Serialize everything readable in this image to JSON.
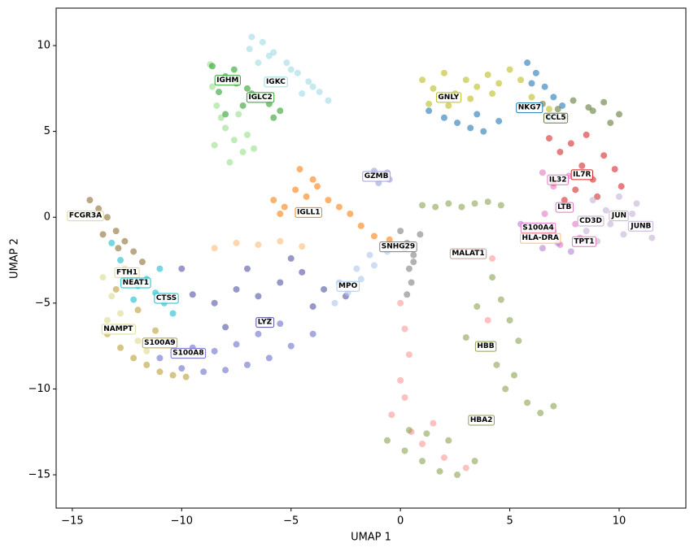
{
  "chart_data": {
    "type": "scatter",
    "xlabel": "UMAP 1",
    "ylabel": "UMAP 2",
    "xlim": [
      -15.74,
      13.05
    ],
    "ylim": [
      -16.94,
      12.18
    ],
    "xticks": [
      {
        "value": -15,
        "label": "−15"
      },
      {
        "value": -10,
        "label": "−10"
      },
      {
        "value": -5,
        "label": "−5"
      },
      0,
      5,
      10
    ],
    "yticks": [
      {
        "value": -15,
        "label": "−15"
      },
      {
        "value": -10,
        "label": "−10"
      },
      {
        "value": -5,
        "label": "−5"
      },
      0,
      5,
      10
    ],
    "grid": false,
    "series": [
      {
        "color": "#9edae5",
        "x": [
          -6.8,
          -6.3,
          -5.8,
          -5.2,
          -4.7,
          -4.2,
          -3.7,
          -3.3,
          -6.5,
          -5.5,
          -4.5,
          -6.9,
          -6.0,
          -5.0,
          -4.0
        ],
        "y": [
          10.5,
          10.2,
          9.6,
          9.0,
          8.4,
          7.9,
          7.3,
          6.8,
          9.0,
          8.0,
          7.2,
          9.8,
          9.4,
          8.6,
          7.6
        ]
      },
      {
        "color": "#98df8a",
        "x": [
          -8.7,
          -8.4,
          -8.0,
          -7.6,
          -7.2,
          -8.5,
          -7.8,
          -8.2,
          -7.4,
          -7.0,
          -8.6,
          -6.7
        ],
        "y": [
          8.9,
          6.5,
          5.2,
          4.5,
          3.8,
          4.2,
          3.2,
          5.8,
          6.0,
          4.8,
          7.6,
          4.0
        ]
      },
      {
        "color": "#2ca02c",
        "x": [
          -8.6,
          -8.0,
          -7.5,
          -7.0,
          -6.5,
          -6.0,
          -5.5,
          -8.3,
          -7.6,
          -6.8,
          -7.2,
          -8.0,
          -5.8
        ],
        "y": [
          8.8,
          8.2,
          7.8,
          7.5,
          7.0,
          6.6,
          6.2,
          7.3,
          8.6,
          7.2,
          6.5,
          6.0,
          5.8
        ]
      },
      {
        "color": "#bcbd22",
        "x": [
          1.0,
          1.5,
          2.0,
          2.5,
          3.0,
          3.5,
          4.0,
          4.5,
          5.0,
          5.5,
          2.2,
          3.2,
          4.2,
          1.3,
          6.0,
          6.8
        ],
        "y": [
          8.0,
          7.5,
          8.4,
          7.2,
          8.0,
          7.6,
          8.3,
          7.8,
          8.6,
          8.0,
          6.5,
          6.9,
          7.2,
          6.6,
          7.0,
          6.3
        ]
      },
      {
        "color": "#1f77b4",
        "x": [
          1.3,
          2.0,
          2.6,
          3.2,
          3.8,
          5.8,
          6.2,
          6.6,
          7.0,
          7.4,
          6.0,
          6.8,
          3.5,
          4.5
        ],
        "y": [
          6.2,
          5.8,
          5.5,
          5.2,
          5.0,
          9.0,
          8.4,
          7.6,
          7.0,
          6.5,
          7.8,
          5.8,
          6.0,
          5.6
        ]
      },
      {
        "color": "#637939",
        "x": [
          6.5,
          7.2,
          7.9,
          8.6,
          9.3,
          10.0,
          7.5,
          8.8,
          9.6
        ],
        "y": [
          6.6,
          6.3,
          6.8,
          6.4,
          6.7,
          6.0,
          5.8,
          6.2,
          5.5
        ]
      },
      {
        "color": "#d62728",
        "x": [
          6.8,
          7.3,
          7.8,
          8.3,
          8.8,
          9.3,
          9.8,
          7.0,
          8.0,
          9.0,
          10.1,
          7.5,
          8.5
        ],
        "y": [
          4.6,
          3.8,
          4.3,
          3.0,
          2.2,
          3.6,
          2.8,
          2.0,
          1.6,
          1.2,
          1.8,
          1.0,
          4.8
        ]
      },
      {
        "color": "#e377c2",
        "x": [
          6.5,
          7.0,
          7.5,
          8.0,
          6.8,
          7.3,
          8.2,
          6.6,
          7.7
        ],
        "y": [
          2.6,
          1.8,
          0.6,
          -0.4,
          -1.0,
          -1.6,
          -1.2,
          0.2,
          2.4
        ]
      },
      {
        "color": "#c5b0d5",
        "x": [
          8.8,
          9.4,
          10.0,
          10.6,
          11.2,
          11.5,
          9.0,
          10.2,
          10.8,
          9.6,
          8.5
        ],
        "y": [
          1.0,
          0.4,
          1.2,
          0.2,
          -0.6,
          -1.2,
          -1.4,
          -1.0,
          0.8,
          -0.4,
          -0.8
        ]
      },
      {
        "color": "#b682d4",
        "x": [
          5.5,
          6.0,
          6.5,
          7.2,
          7.8,
          8.3,
          6.2,
          7.0
        ],
        "y": [
          -0.4,
          -1.2,
          -1.8,
          -1.5,
          -2.0,
          -1.4,
          -0.6,
          -0.8
        ]
      },
      {
        "color": "#9c9ede",
        "x": [
          -1.2,
          -0.8,
          -0.5,
          -1.0,
          -0.6
        ],
        "y": [
          2.7,
          2.4,
          2.2,
          2.0,
          2.6
        ]
      },
      {
        "color": "#ff7f0e",
        "x": [
          -5.8,
          -5.3,
          -4.8,
          -4.3,
          -3.8,
          -3.3,
          -2.8,
          -2.3,
          -1.8,
          -4.6,
          -4.0,
          -5.5,
          -1.2,
          -0.5
        ],
        "y": [
          1.0,
          0.6,
          1.6,
          1.2,
          1.8,
          1.0,
          0.6,
          0.2,
          -0.5,
          2.8,
          2.2,
          0.2,
          -1.1,
          -1.3
        ]
      },
      {
        "color": "#8c6d31",
        "x": [
          -14.2,
          -13.8,
          -13.4,
          -13.0,
          -12.6,
          -12.2,
          -11.8,
          -13.6,
          -12.9
        ],
        "y": [
          1.0,
          0.5,
          0.0,
          -0.8,
          -1.4,
          -2.0,
          -2.6,
          -1.0,
          -1.8
        ]
      },
      {
        "color": "#dbdb8d",
        "x": [
          -13.6,
          -13.2,
          -12.8,
          -12.4,
          -12.0,
          -13.4,
          -11.6,
          -12.6
        ],
        "y": [
          -3.5,
          -4.6,
          -5.6,
          -6.4,
          -7.2,
          -6.0,
          -7.8,
          -3.0
        ]
      },
      {
        "color": "#17becf",
        "x": [
          -13.2,
          -12.8,
          -12.4,
          -12.0,
          -11.6,
          -11.2,
          -10.8,
          -10.4,
          -12.2,
          -11.0
        ],
        "y": [
          -1.5,
          -2.5,
          -3.2,
          -4.0,
          -3.6,
          -4.4,
          -5.0,
          -5.6,
          -4.8,
          -3.0
        ]
      },
      {
        "color": "#bd9e39",
        "x": [
          -13.4,
          -12.8,
          -12.2,
          -11.6,
          -11.0,
          -10.4,
          -9.8,
          -12.0,
          -11.2,
          -13.0
        ],
        "y": [
          -6.8,
          -7.6,
          -8.2,
          -8.6,
          -9.0,
          -9.2,
          -9.3,
          -5.4,
          -6.6,
          -4.2
        ]
      },
      {
        "color": "#6b6ecf",
        "x": [
          -11.0,
          -10.0,
          -9.0,
          -8.0,
          -7.0,
          -6.0,
          -5.0,
          -4.0,
          -9.5,
          -8.5,
          -7.5,
          -6.5,
          -5.5,
          -10.5
        ],
        "y": [
          -8.2,
          -8.8,
          -9.0,
          -8.9,
          -8.6,
          -8.2,
          -7.5,
          -6.8,
          -7.6,
          -7.8,
          -7.4,
          -6.8,
          -6.2,
          -7.2
        ]
      },
      {
        "color": "#5254a3",
        "x": [
          -9.5,
          -8.5,
          -7.5,
          -6.5,
          -5.5,
          -4.5,
          -3.5,
          -2.5,
          -8.0,
          -6.0,
          -4.0,
          -7.0,
          -5.0,
          -10.0
        ],
        "y": [
          -4.5,
          -5.0,
          -4.2,
          -4.6,
          -3.8,
          -3.2,
          -4.2,
          -4.6,
          -6.4,
          -6.0,
          -5.2,
          -3.0,
          -2.4,
          -3.0
        ]
      },
      {
        "color": "#aec7e8",
        "x": [
          -3.0,
          -2.4,
          -1.8,
          -1.2,
          -0.6,
          -2.0,
          -1.4,
          -2.8
        ],
        "y": [
          -5.0,
          -4.4,
          -3.6,
          -2.8,
          -2.0,
          -3.0,
          -2.2,
          -3.8
        ]
      },
      {
        "color": "#ffbb78",
        "x": [
          -8.5,
          -7.5,
          -6.5,
          -5.5,
          -4.5
        ],
        "y": [
          -1.8,
          -1.5,
          -1.6,
          -1.4,
          -1.7
        ]
      },
      {
        "color": "#7f7f7f",
        "x": [
          0.0,
          0.3,
          0.6,
          0.9,
          0.4,
          0.5,
          0.3,
          0.6,
          0.2
        ],
        "y": [
          -0.8,
          -1.5,
          -2.2,
          -1.0,
          -3.0,
          -3.8,
          -4.5,
          -2.6,
          -1.8
        ]
      },
      {
        "color": "#ff9896",
        "x": [
          0.0,
          0.2,
          0.4,
          0.0,
          -0.4,
          0.5,
          1.0,
          2.0,
          3.0,
          1.5,
          0.2,
          4.2,
          4.0
        ],
        "y": [
          -5.0,
          -6.5,
          -8.0,
          -9.5,
          -11.5,
          -12.5,
          -13.2,
          -14.0,
          -14.6,
          -12.0,
          -10.5,
          -2.4,
          -6.0
        ]
      },
      {
        "color": "#8ca252",
        "x": [
          1.0,
          1.6,
          2.2,
          2.8,
          3.4,
          4.0,
          4.6,
          4.2,
          4.6,
          5.0,
          5.4,
          4.4,
          5.2,
          4.8,
          5.8,
          6.4,
          7.0,
          3.5,
          3.0
        ],
        "y": [
          0.7,
          0.6,
          0.8,
          0.6,
          0.8,
          0.9,
          0.7,
          -3.5,
          -4.8,
          -6.0,
          -7.2,
          -8.6,
          -9.2,
          -10.0,
          -10.8,
          -11.4,
          -11.0,
          -5.2,
          -7.0
        ]
      },
      {
        "color": "#8ca252",
        "x": [
          -0.6,
          0.2,
          1.0,
          1.8,
          2.6,
          3.4,
          2.2,
          1.2,
          0.4
        ],
        "y": [
          -13.0,
          -13.6,
          -14.2,
          -14.8,
          -15.0,
          -14.2,
          -13.0,
          -12.6,
          -12.4
        ]
      }
    ],
    "annotations": [
      {
        "text": "IGHM",
        "x": -7.9,
        "y": 8.0,
        "color": "#2ca02c"
      },
      {
        "text": "IGKC",
        "x": -5.7,
        "y": 7.9,
        "color": "#9edae5"
      },
      {
        "text": "IGLC2",
        "x": -6.4,
        "y": 7.0,
        "color": "#2ca02c"
      },
      {
        "text": "GNLY",
        "x": 2.2,
        "y": 7.0,
        "color": "#bcbd22"
      },
      {
        "text": "NKG7",
        "x": 5.9,
        "y": 6.4,
        "color": "#1f77b4"
      },
      {
        "text": "CCL5",
        "x": 7.1,
        "y": 5.8,
        "color": "#637939"
      },
      {
        "text": "IL7R",
        "x": 8.3,
        "y": 2.5,
        "color": "#d62728"
      },
      {
        "text": "IL32",
        "x": 7.2,
        "y": 2.2,
        "color": "#e377c2"
      },
      {
        "text": "LTB",
        "x": 7.5,
        "y": 0.6,
        "color": "#e377c2"
      },
      {
        "text": "JUN",
        "x": 10.0,
        "y": 0.1,
        "color": "#c5b0d5"
      },
      {
        "text": "CD3D",
        "x": 8.7,
        "y": -0.2,
        "color": "#c5b0d5"
      },
      {
        "text": "JUNB",
        "x": 11.0,
        "y": -0.5,
        "color": "#c5b0d5"
      },
      {
        "text": "S100A4",
        "x": 6.3,
        "y": -0.6,
        "color": "#e377c2"
      },
      {
        "text": "HLA-DRA",
        "x": 6.4,
        "y": -1.2,
        "color": "#ffbb78"
      },
      {
        "text": "TPT1",
        "x": 8.4,
        "y": -1.4,
        "color": "#e377c2"
      },
      {
        "text": "GZMB",
        "x": -1.1,
        "y": 2.4,
        "color": "#9c9ede"
      },
      {
        "text": "IGLL1",
        "x": -4.2,
        "y": 0.3,
        "color": "#ff7f0e"
      },
      {
        "text": "FCGR3A",
        "x": -14.4,
        "y": 0.1,
        "color": "#dbdb8d"
      },
      {
        "text": "FTH1",
        "x": -12.5,
        "y": -3.2,
        "color": "#dbdb8d"
      },
      {
        "text": "NEAT1",
        "x": -12.1,
        "y": -3.8,
        "color": "#17becf"
      },
      {
        "text": "CTSS",
        "x": -10.7,
        "y": -4.7,
        "color": "#17becf"
      },
      {
        "text": "NAMPT",
        "x": -12.9,
        "y": -6.5,
        "color": "#dbdb8d"
      },
      {
        "text": "S100A9",
        "x": -11.0,
        "y": -7.3,
        "color": "#bd9e39"
      },
      {
        "text": "S100A8",
        "x": -9.7,
        "y": -7.9,
        "color": "#6b6ecf"
      },
      {
        "text": "LYZ",
        "x": -6.2,
        "y": -6.1,
        "color": "#5254a3"
      },
      {
        "text": "MPO",
        "x": -2.4,
        "y": -4.0,
        "color": "#aec7e8"
      },
      {
        "text": "SNHG29",
        "x": -0.1,
        "y": -1.7,
        "color": "#7f7f7f"
      },
      {
        "text": "MALAT1",
        "x": 3.1,
        "y": -2.1,
        "color": "#c49c94"
      },
      {
        "text": "HBB",
        "x": 3.9,
        "y": -7.5,
        "color": "#8ca252"
      },
      {
        "text": "HBA2",
        "x": 3.7,
        "y": -11.8,
        "color": "#8ca252"
      }
    ]
  }
}
